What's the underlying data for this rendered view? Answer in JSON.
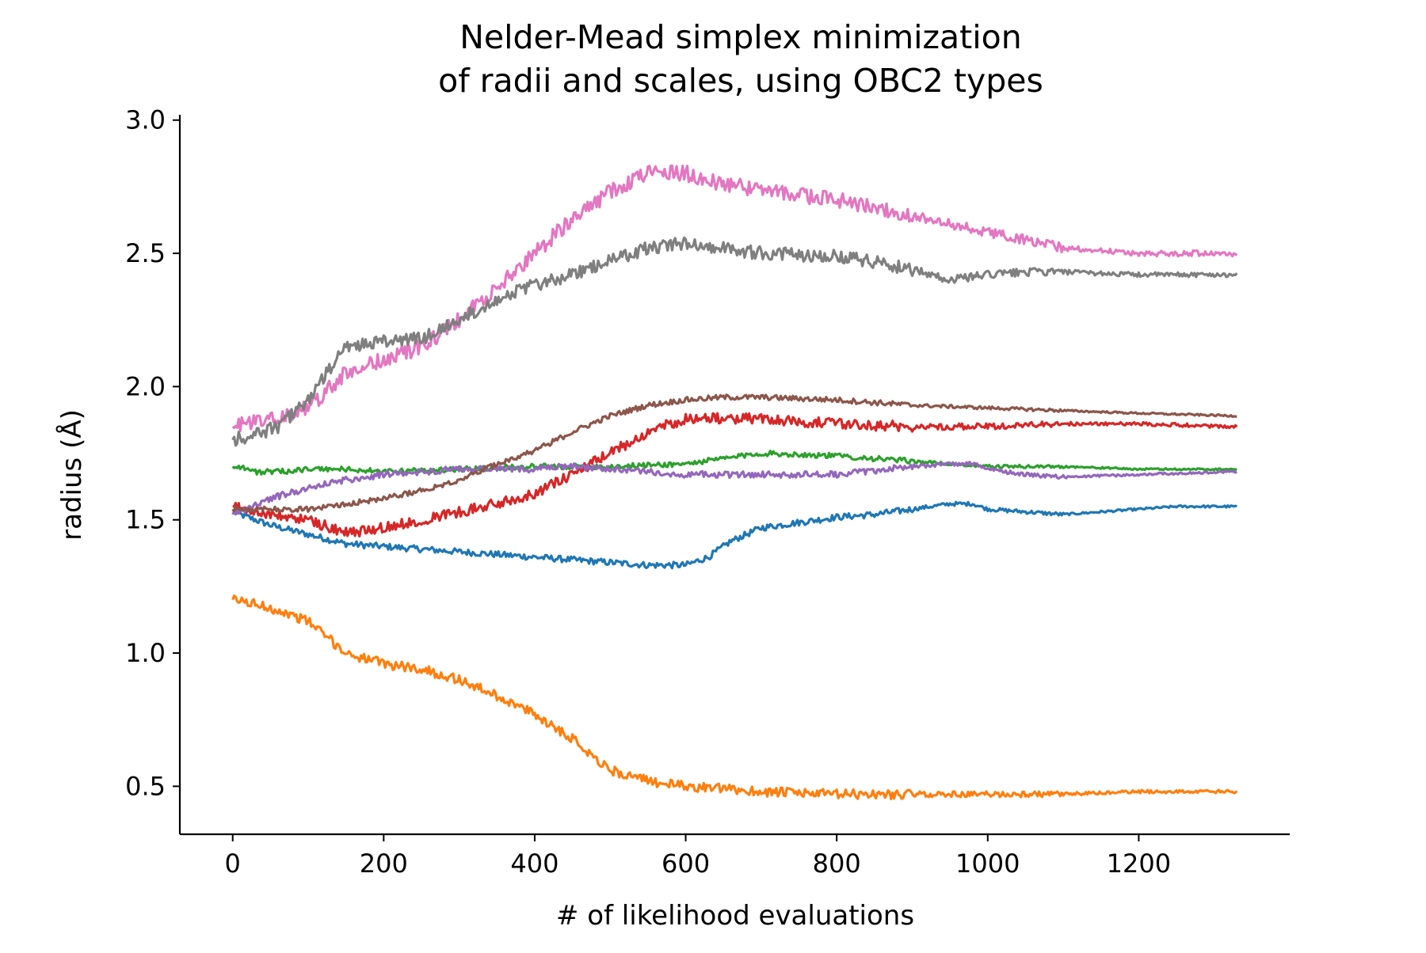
{
  "chart_data": {
    "type": "line",
    "title": [
      "Nelder-Mead simplex minimization",
      "of radii and scales, using OBC2 types"
    ],
    "xlabel": "# of likelihood evaluations",
    "ylabel": "radius (Å)",
    "xlim": [
      -70,
      1400
    ],
    "ylim": [
      0.32,
      3.02
    ],
    "xticks": [
      0,
      200,
      400,
      600,
      800,
      1000,
      1200
    ],
    "xtick_labels": [
      "0",
      "200",
      "400",
      "600",
      "800",
      "1000",
      "1200"
    ],
    "yticks": [
      0.5,
      1.0,
      1.5,
      2.0,
      2.5,
      3.0
    ],
    "ytick_labels": [
      "0.5",
      "1.0",
      "1.5",
      "2.0",
      "2.5",
      "3.0"
    ],
    "grid": false,
    "legend": "none",
    "series": [
      {
        "color": "#1f77b4",
        "noise": 0.012,
        "x": [
          0,
          50,
          150,
          250,
          350,
          450,
          550,
          600,
          630,
          660,
          700,
          750,
          800,
          850,
          900,
          950,
          980,
          1000,
          1050,
          1100,
          1150,
          1200,
          1250,
          1330
        ],
        "values": [
          1.53,
          1.48,
          1.41,
          1.39,
          1.37,
          1.35,
          1.33,
          1.33,
          1.36,
          1.42,
          1.47,
          1.49,
          1.51,
          1.52,
          1.54,
          1.56,
          1.56,
          1.54,
          1.53,
          1.52,
          1.53,
          1.54,
          1.55,
          1.55
        ]
      },
      {
        "color": "#ff7f0e",
        "noise": 0.018,
        "x": [
          0,
          20,
          50,
          100,
          150,
          200,
          250,
          300,
          350,
          400,
          450,
          500,
          550,
          600,
          650,
          700,
          800,
          900,
          1000,
          1100,
          1200,
          1330
        ],
        "values": [
          1.2,
          1.19,
          1.17,
          1.12,
          1.0,
          0.96,
          0.94,
          0.9,
          0.84,
          0.77,
          0.68,
          0.56,
          0.52,
          0.5,
          0.49,
          0.48,
          0.47,
          0.47,
          0.47,
          0.47,
          0.48,
          0.48
        ]
      },
      {
        "color": "#2ca02c",
        "noise": 0.01,
        "x": [
          0,
          10,
          30,
          60,
          100,
          150,
          200,
          300,
          400,
          500,
          600,
          650,
          700,
          800,
          900,
          1000,
          1100,
          1200,
          1330
        ],
        "values": [
          1.7,
          1.7,
          1.68,
          1.68,
          1.69,
          1.69,
          1.68,
          1.69,
          1.7,
          1.7,
          1.71,
          1.73,
          1.75,
          1.74,
          1.72,
          1.7,
          1.7,
          1.69,
          1.69
        ]
      },
      {
        "color": "#d62728",
        "noise": 0.02,
        "x": [
          0,
          30,
          70,
          100,
          150,
          200,
          250,
          300,
          350,
          400,
          450,
          500,
          550,
          600,
          650,
          700,
          800,
          900,
          1000,
          1100,
          1200,
          1330
        ],
        "values": [
          1.55,
          1.53,
          1.51,
          1.5,
          1.45,
          1.47,
          1.5,
          1.53,
          1.56,
          1.6,
          1.67,
          1.75,
          1.83,
          1.88,
          1.88,
          1.88,
          1.86,
          1.85,
          1.85,
          1.86,
          1.86,
          1.85
        ]
      },
      {
        "color": "#9467bd",
        "noise": 0.012,
        "x": [
          0,
          50,
          100,
          150,
          200,
          300,
          400,
          450,
          500,
          600,
          700,
          800,
          900,
          950,
          980,
          1000,
          1050,
          1100,
          1200,
          1330
        ],
        "values": [
          1.52,
          1.58,
          1.62,
          1.65,
          1.67,
          1.69,
          1.69,
          1.7,
          1.69,
          1.67,
          1.67,
          1.67,
          1.7,
          1.71,
          1.71,
          1.69,
          1.67,
          1.66,
          1.67,
          1.68
        ]
      },
      {
        "color": "#8c564b",
        "noise": 0.01,
        "x": [
          0,
          50,
          100,
          150,
          200,
          250,
          300,
          350,
          400,
          450,
          500,
          550,
          600,
          650,
          700,
          800,
          900,
          1000,
          1100,
          1200,
          1330
        ],
        "values": [
          1.54,
          1.54,
          1.54,
          1.56,
          1.58,
          1.61,
          1.65,
          1.71,
          1.76,
          1.83,
          1.89,
          1.93,
          1.95,
          1.96,
          1.96,
          1.95,
          1.93,
          1.92,
          1.91,
          1.9,
          1.89
        ]
      },
      {
        "color": "#e377c2",
        "noise": 0.03,
        "x": [
          0,
          30,
          60,
          100,
          150,
          200,
          250,
          300,
          350,
          400,
          450,
          500,
          550,
          600,
          650,
          700,
          800,
          900,
          1000,
          1050,
          1100,
          1200,
          1330
        ],
        "values": [
          1.85,
          1.87,
          1.88,
          1.92,
          2.05,
          2.1,
          2.15,
          2.25,
          2.37,
          2.5,
          2.63,
          2.73,
          2.8,
          2.8,
          2.76,
          2.74,
          2.7,
          2.64,
          2.58,
          2.55,
          2.52,
          2.5,
          2.5
        ]
      },
      {
        "color": "#7f7f7f",
        "noise": 0.025,
        "x": [
          0,
          30,
          60,
          100,
          150,
          200,
          250,
          300,
          350,
          400,
          450,
          500,
          550,
          600,
          650,
          700,
          800,
          850,
          900,
          950,
          1000,
          1050,
          1100,
          1200,
          1330
        ],
        "values": [
          1.8,
          1.82,
          1.85,
          1.95,
          2.15,
          2.17,
          2.18,
          2.25,
          2.33,
          2.38,
          2.42,
          2.47,
          2.52,
          2.54,
          2.52,
          2.5,
          2.49,
          2.47,
          2.44,
          2.4,
          2.42,
          2.43,
          2.43,
          2.42,
          2.42
        ]
      }
    ]
  }
}
